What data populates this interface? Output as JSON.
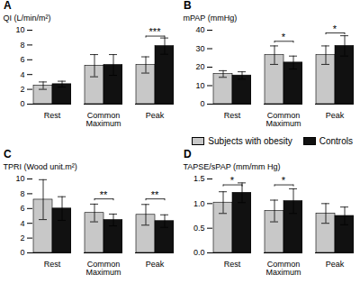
{
  "chart_data": [
    {
      "type": "bar",
      "title": "A",
      "ylabel": "QI (L/min/m²)",
      "categories": [
        "Rest",
        "Common\nMaximum",
        "Peak"
      ],
      "series": [
        {
          "name": "Subjects with obesity",
          "color": "#c8c8c8",
          "values": [
            2.5,
            5.2,
            5.3
          ],
          "errors": [
            0.5,
            1.5,
            1.1
          ]
        },
        {
          "name": "Controls",
          "color": "#111111",
          "values": [
            2.7,
            5.3,
            7.85
          ],
          "errors": [
            0.4,
            1.4,
            1.1
          ]
        }
      ],
      "ylim": [
        0,
        10
      ],
      "yticks": [
        0,
        2,
        4,
        6,
        8,
        10
      ],
      "annotations": [
        {
          "category": "Peak",
          "label": "***",
          "y": 9.2
        }
      ]
    },
    {
      "type": "bar",
      "title": "B",
      "ylabel": "mPAP (mmHg)",
      "categories": [
        "Rest",
        "Common\nMaximum",
        "Peak"
      ],
      "series": [
        {
          "name": "Subjects with obesity",
          "color": "#c8c8c8",
          "values": [
            16.3,
            26.5,
            26.5
          ],
          "errors": [
            1.8,
            5.0,
            5.0
          ]
        },
        {
          "name": "Controls",
          "color": "#111111",
          "values": [
            15.5,
            22.5,
            31.5
          ],
          "errors": [
            2.0,
            3.5,
            5.5
          ]
        }
      ],
      "ylim": [
        0,
        40
      ],
      "yticks": [
        0,
        10,
        20,
        30,
        40
      ],
      "annotations": [
        {
          "category": "Common\nMaximum",
          "label": "*",
          "y": 34.0
        },
        {
          "category": "Peak",
          "label": "*",
          "y": 38.5
        }
      ],
      "legend": "right"
    },
    {
      "type": "bar",
      "title": "C",
      "ylabel": "TPRI (Wood unit.m²)",
      "categories": [
        "Rest",
        "Common\nMaximum",
        "Peak"
      ],
      "series": [
        {
          "name": "Subjects with obesity",
          "color": "#c8c8c8",
          "values": [
            7.2,
            5.4,
            5.15
          ],
          "errors": [
            2.7,
            1.2,
            1.4
          ]
        },
        {
          "name": "Controls",
          "color": "#111111",
          "values": [
            6.0,
            4.45,
            4.3
          ],
          "errors": [
            1.6,
            0.8,
            0.85
          ]
        }
      ],
      "ylim": [
        0,
        10
      ],
      "yticks": [
        0,
        2,
        4,
        6,
        8,
        10
      ],
      "annotations": [
        {
          "category": "Common\nMaximum",
          "label": "**",
          "y": 7.3
        },
        {
          "category": "Peak",
          "label": "**",
          "y": 7.3
        }
      ]
    },
    {
      "type": "bar",
      "title": "D",
      "ylabel": "TAPSE/sPAP (mm/mm Hg)",
      "categories": [
        "Rest",
        "Common\nMaximum",
        "Peak"
      ],
      "series": [
        {
          "name": "Subjects with obesity",
          "color": "#c8c8c8",
          "values": [
            1.02,
            0.85,
            0.8
          ],
          "errors": [
            0.22,
            0.22,
            0.2
          ]
        },
        {
          "name": "Controls",
          "color": "#111111",
          "values": [
            1.22,
            1.05,
            0.75
          ],
          "errors": [
            0.2,
            0.25,
            0.18
          ]
        }
      ],
      "ylim": [
        0.0,
        1.5
      ],
      "yticks": [
        {
          "value": 0.0,
          "label": "0.0"
        },
        {
          "value": 0.5,
          "label": "0.5"
        },
        {
          "value": 1.0,
          "label": "1.0"
        },
        {
          "value": 1.5,
          "label": "1.5"
        }
      ],
      "annotations": [
        {
          "category": "Rest",
          "label": "*",
          "y": 1.38
        },
        {
          "category": "Common\nMaximum",
          "label": "*",
          "y": 1.38
        }
      ]
    }
  ]
}
